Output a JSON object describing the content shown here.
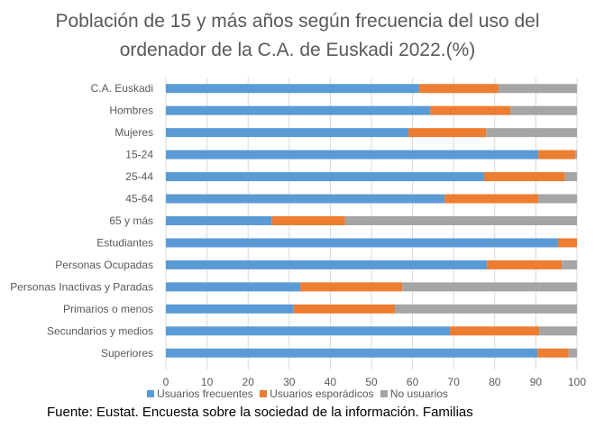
{
  "chart_data": {
    "type": "bar",
    "orientation": "horizontal",
    "stacked": true,
    "title_lines": [
      "Población de 15 y más años según frecuencia del uso del",
      "ordenador de la C.A. de Euskadi 2022.(%)"
    ],
    "title": "Población de 15 y más años según frecuencia del uso del ordenador de la C.A. de Euskadi 2022.(%)",
    "xlabel": "",
    "ylabel": "",
    "xlim": [
      0,
      100
    ],
    "xticks": [
      0,
      10,
      20,
      30,
      40,
      50,
      60,
      70,
      80,
      90,
      100
    ],
    "grid": true,
    "legend_position": "bottom",
    "categories": [
      "C.A. Euskadi",
      "Hombres",
      "Mujeres",
      "15-24",
      "25-44",
      "45-64",
      "65 y más",
      "Estudiantes",
      "Personas Ocupadas",
      "Personas Inactivas y Paradas",
      "Primarios o menos",
      "Secundarios y medios",
      "Superiores"
    ],
    "series": [
      {
        "name": "Usuarios frecuentes",
        "color": "#5b9bd5",
        "values": [
          61.6,
          64.3,
          59.0,
          90.6,
          77.4,
          67.8,
          25.7,
          95.4,
          78.1,
          32.7,
          31.1,
          69.1,
          90.4
        ]
      },
      {
        "name": "Usuarios esporádicos",
        "color": "#ed7d31",
        "values": [
          19.3,
          19.5,
          18.9,
          9.0,
          19.7,
          22.8,
          17.9,
          4.6,
          18.2,
          24.8,
          24.6,
          21.7,
          7.6
        ]
      },
      {
        "name": "No usuarios",
        "color": "#a5a5a5",
        "values": [
          19.1,
          16.2,
          22.1,
          0.4,
          2.9,
          9.4,
          56.4,
          0.0,
          3.7,
          42.5,
          44.3,
          9.2,
          2.0
        ]
      }
    ],
    "source": "Fuente: Eustat. Encuesta sobre la sociedad de la información. Familias"
  }
}
